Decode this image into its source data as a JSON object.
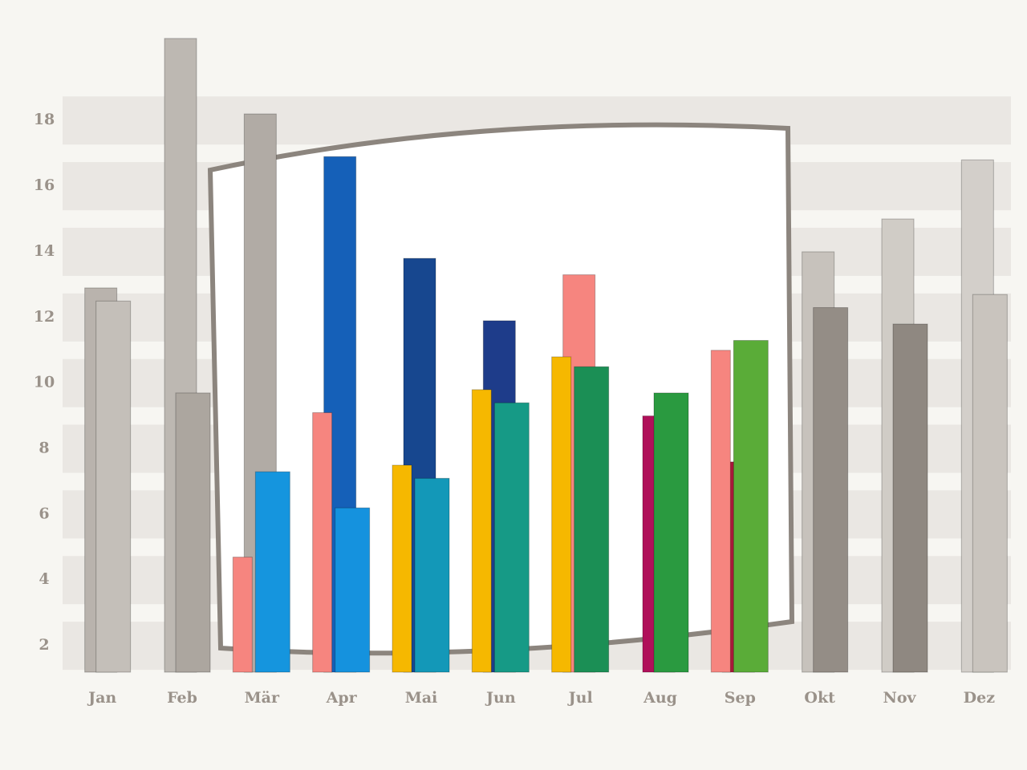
{
  "chart_data": {
    "type": "bar",
    "categories": [
      "Jan",
      "Feb",
      "Mär",
      "Apr",
      "Mai",
      "Jun",
      "Jul",
      "Aug",
      "Sep",
      "Okt",
      "Nov",
      "Dez"
    ],
    "series": [
      {
        "values": [
          12.9,
          20.5,
          18.2,
          16.9,
          13.8,
          11.9,
          13.3,
          9.0,
          7.6,
          14.0,
          15.0,
          16.8
        ],
        "colors": [
          "#b9b3ad",
          "#bdb8b2",
          "#b1aba5",
          "#1560b8",
          "#17478f",
          "#1e3c8a",
          "#f6857f",
          "#b0105a",
          "#a8173a",
          "#c7c2bc",
          "#d0ccc6",
          "#d3cfca"
        ]
      },
      {
        "values": [
          12.5,
          9.7,
          7.3,
          6.2,
          7.1,
          9.4,
          10.5,
          9.7,
          11.3,
          12.3,
          11.8,
          12.7
        ],
        "colors": [
          "#c4bfb9",
          "#aca69f",
          "#1595de",
          "#1592de",
          "#1398b8",
          "#169a86",
          "#1b8f55",
          "#2a9a40",
          "#5aac38",
          "#948d86",
          "#8f8881",
          "#c9c4be"
        ]
      },
      {
        "values": [
          null,
          null,
          4.7,
          9.1,
          7.5,
          9.8,
          10.8,
          null,
          11.0,
          null,
          null,
          null
        ],
        "colors": [
          null,
          null,
          "#f6857f",
          "#f6857f",
          "#f6b800",
          "#f6b800",
          "#f6b800",
          null,
          "#f6857f",
          null,
          null,
          null
        ]
      }
    ],
    "ylim": [
      1,
      21.5
    ],
    "yticks": [
      2,
      4,
      6,
      8,
      10,
      12,
      14,
      16,
      18
    ],
    "grid": true
  }
}
